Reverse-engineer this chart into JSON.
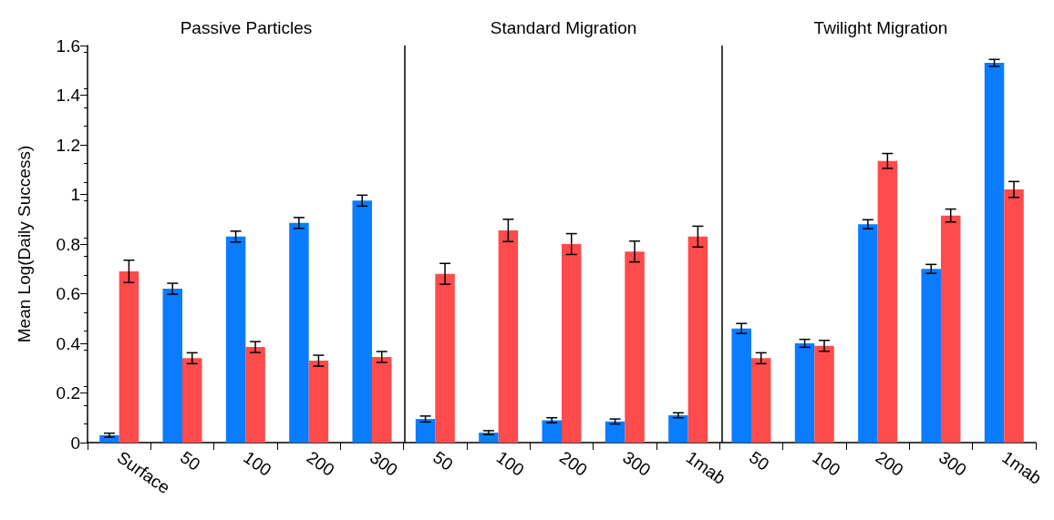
{
  "chart_data": {
    "type": "bar",
    "ylabel": "Mean Log(Daily Success)",
    "categories": [
      "Surface",
      "50",
      "100",
      "200",
      "300",
      "50",
      "100",
      "200",
      "300",
      "1mab",
      "50",
      "100",
      "200",
      "300",
      "1mab"
    ],
    "series": [
      {
        "color": "#0a7cff",
        "values": [
          0.03,
          0.62,
          0.83,
          0.885,
          0.975,
          0.095,
          0.04,
          0.09,
          0.085,
          0.11,
          0.46,
          0.4,
          0.88,
          0.7,
          1.53
        ],
        "errors": [
          0.008,
          0.022,
          0.022,
          0.022,
          0.022,
          0.012,
          0.008,
          0.01,
          0.01,
          0.01,
          0.02,
          0.016,
          0.018,
          0.018,
          0.014
        ]
      },
      {
        "color": "#ff4b4b",
        "values": [
          0.69,
          0.34,
          0.385,
          0.33,
          0.345,
          0.68,
          0.855,
          0.8,
          0.77,
          0.83,
          0.34,
          0.39,
          1.135,
          0.915,
          1.02
        ],
        "errors": [
          0.045,
          0.022,
          0.022,
          0.022,
          0.022,
          0.042,
          0.045,
          0.042,
          0.042,
          0.042,
          0.022,
          0.022,
          0.03,
          0.026,
          0.032
        ]
      }
    ],
    "ylim": [
      0,
      1.6
    ],
    "yticks": [
      0,
      0.2,
      0.4,
      0.6,
      0.8,
      1,
      1.2,
      1.4,
      1.6
    ],
    "grid": false,
    "annotations": [
      "Passive Particles",
      "Standard Migration",
      "Twilight Migration"
    ]
  }
}
